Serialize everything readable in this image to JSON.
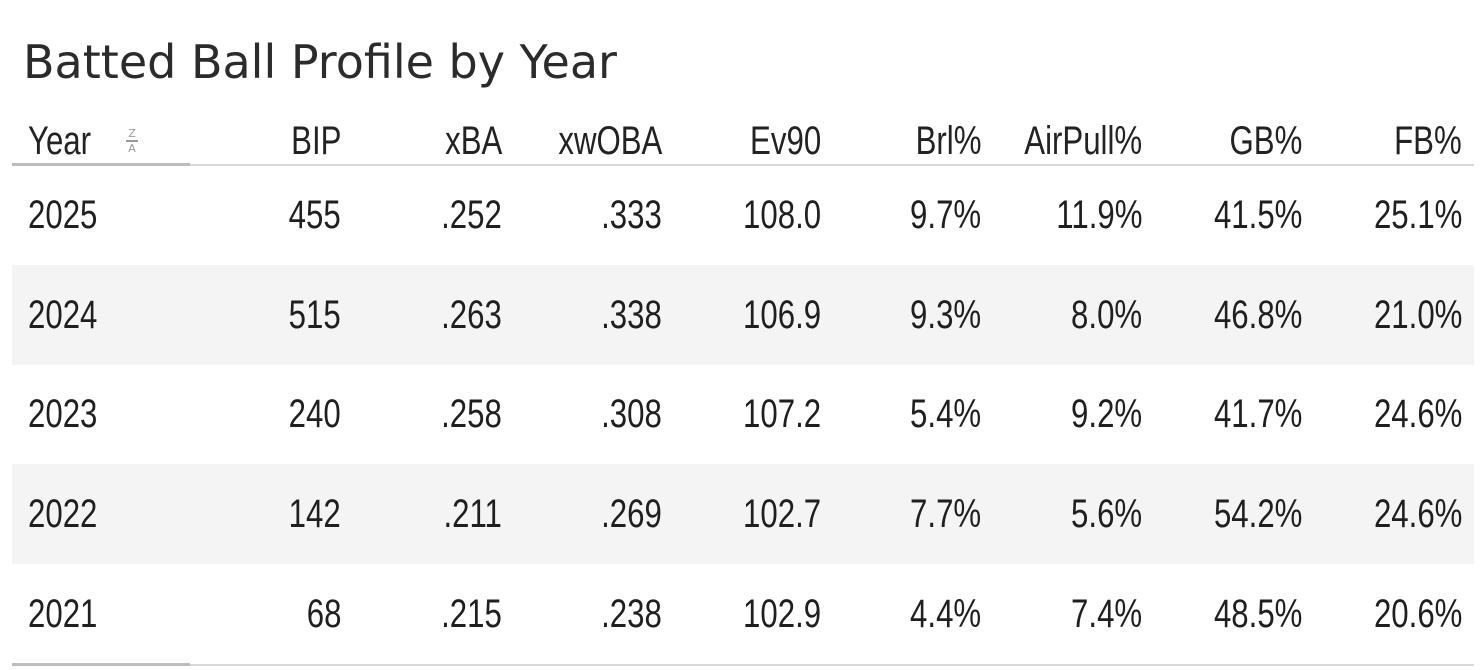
{
  "title": "Batted Ball Profile by Year",
  "sort_indicator": {
    "top": "Z",
    "bottom": "A",
    "icon": "sort-z-a-icon"
  },
  "columns": [
    "Year",
    "BIP",
    "xBA",
    "xwOBA",
    "Ev90",
    "Brl%",
    "AirPull%",
    "GB%",
    "FB%"
  ],
  "rows": [
    [
      "2025",
      "455",
      ".252",
      ".333",
      "108.0",
      "9.7%",
      "11.9%",
      "41.5%",
      "25.1%"
    ],
    [
      "2024",
      "515",
      ".263",
      ".338",
      "106.9",
      "9.3%",
      "8.0%",
      "46.8%",
      "21.0%"
    ],
    [
      "2023",
      "240",
      ".258",
      ".308",
      "107.2",
      "5.4%",
      "9.2%",
      "41.7%",
      "24.6%"
    ],
    [
      "2022",
      "142",
      ".211",
      ".269",
      "102.7",
      "7.7%",
      "5.6%",
      "54.2%",
      "24.6%"
    ],
    [
      "2021",
      "68",
      ".215",
      ".238",
      "102.9",
      "4.4%",
      "7.4%",
      "48.5%",
      "20.6%"
    ]
  ],
  "colors": {
    "alt_row": "#f4f4f4",
    "rule": "#d8d8d8",
    "text": "#1f1f1f"
  }
}
